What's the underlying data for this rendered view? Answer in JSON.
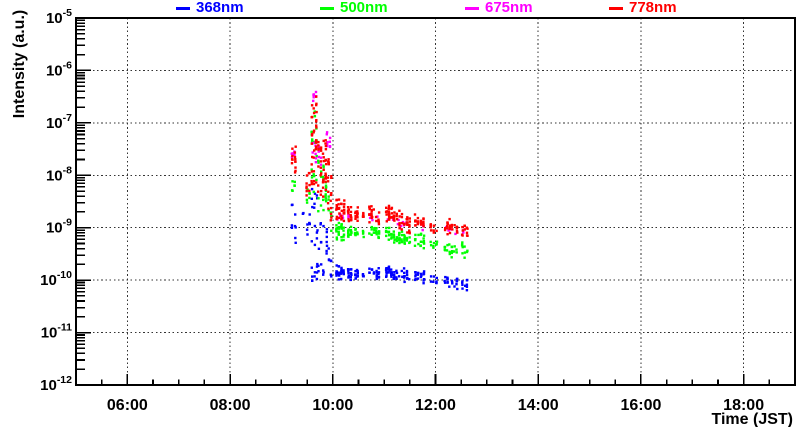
{
  "chart_data": {
    "type": "scatter",
    "title": "",
    "xlabel": "Time (JST)",
    "ylabel": "Intensity (a.u.)",
    "x_axis": {
      "unit": "hour_of_day",
      "min": 5,
      "max": 19,
      "major_ticks": [
        {
          "hour": 6,
          "label": "06:00"
        },
        {
          "hour": 8,
          "label": "08:00"
        },
        {
          "hour": 10,
          "label": "10:00"
        },
        {
          "hour": 12,
          "label": "12:00"
        },
        {
          "hour": 14,
          "label": "14:00"
        },
        {
          "hour": 16,
          "label": "16:00"
        },
        {
          "hour": 18,
          "label": "18:00"
        }
      ],
      "minor_step_hours": 0.5,
      "grid": "dotted"
    },
    "y_axis": {
      "scale": "log10",
      "tick_base": "10",
      "max_exponent": -5,
      "min_exponent": -12,
      "tick_exponents": [
        -5,
        -6,
        -7,
        -8,
        -9,
        -10,
        -11,
        -12
      ],
      "grid": "dotted"
    },
    "legend": [
      {
        "label": "368nm",
        "color": "#0000ff"
      },
      {
        "label": "500nm",
        "color": "#00ff00"
      },
      {
        "label": "675nm",
        "color": "#ff00ff"
      },
      {
        "label": "778nm",
        "color": "#ff0000"
      }
    ],
    "cluster_format": [
      "t_start_hour",
      "t_end_hour",
      "n_points",
      "log10_center_start",
      "log10_center_end",
      "log10_half_spread"
    ],
    "series": [
      {
        "name": "368nm",
        "color": "#0000ff",
        "clusters": [
          [
            9.18,
            9.3,
            9,
            -8.9,
            -9.1,
            0.45
          ],
          [
            9.4,
            9.44,
            2,
            -8.7,
            -8.7,
            0.1
          ],
          [
            9.48,
            9.57,
            7,
            -9.0,
            -8.9,
            0.4
          ],
          [
            9.57,
            9.72,
            14,
            -8.8,
            -8.85,
            0.6
          ],
          [
            9.57,
            9.72,
            10,
            -9.8,
            -9.8,
            0.4
          ],
          [
            9.7,
            9.84,
            12,
            -9.4,
            -9.45,
            0.6
          ],
          [
            9.86,
            9.99,
            14,
            -9.4,
            -9.7,
            0.45
          ],
          [
            10.05,
            10.24,
            26,
            -9.85,
            -9.87,
            0.17
          ],
          [
            10.28,
            10.38,
            14,
            -9.87,
            -9.88,
            0.14
          ],
          [
            10.42,
            10.5,
            12,
            -9.88,
            -9.88,
            0.13
          ],
          [
            10.57,
            10.62,
            4,
            -9.9,
            -9.9,
            0.1
          ],
          [
            10.69,
            10.92,
            20,
            -9.82,
            -9.88,
            0.15
          ],
          [
            11.02,
            11.52,
            52,
            -9.8,
            -9.95,
            0.15
          ],
          [
            11.58,
            11.8,
            20,
            -9.9,
            -9.95,
            0.13
          ],
          [
            11.88,
            12.05,
            8,
            -10.0,
            -10.0,
            0.1
          ],
          [
            12.16,
            12.44,
            20,
            -10.02,
            -10.08,
            0.14
          ],
          [
            12.5,
            12.64,
            10,
            -10.08,
            -10.1,
            0.12
          ]
        ]
      },
      {
        "name": "500nm",
        "color": "#00ff00",
        "clusters": [
          [
            9.19,
            9.28,
            6,
            -8.22,
            -8.25,
            0.15
          ],
          [
            9.48,
            9.57,
            6,
            -8.5,
            -8.45,
            0.3
          ],
          [
            9.62,
            9.67,
            3,
            -6.8,
            -6.8,
            0.1
          ],
          [
            9.57,
            9.7,
            17,
            -7.8,
            -7.8,
            0.7
          ],
          [
            9.7,
            9.84,
            13,
            -8.2,
            -8.3,
            0.5
          ],
          [
            9.84,
            9.99,
            15,
            -8.35,
            -8.85,
            0.4
          ],
          [
            10.05,
            10.24,
            26,
            -9.05,
            -9.08,
            0.18
          ],
          [
            10.28,
            10.38,
            14,
            -9.08,
            -9.1,
            0.15
          ],
          [
            10.42,
            10.5,
            12,
            -9.1,
            -9.1,
            0.13
          ],
          [
            10.57,
            10.62,
            4,
            -9.12,
            -9.12,
            0.1
          ],
          [
            10.69,
            10.92,
            20,
            -9.05,
            -9.1,
            0.15
          ],
          [
            11.02,
            11.52,
            52,
            -9.1,
            -9.28,
            0.16
          ],
          [
            11.58,
            11.8,
            20,
            -9.22,
            -9.28,
            0.15
          ],
          [
            11.88,
            12.05,
            8,
            -9.3,
            -9.32,
            0.12
          ],
          [
            12.16,
            12.44,
            20,
            -9.35,
            -9.42,
            0.2
          ],
          [
            12.5,
            12.64,
            10,
            -9.42,
            -9.45,
            0.16
          ]
        ]
      },
      {
        "name": "675nm",
        "color": "#ff00ff",
        "clusters": [
          [
            9.19,
            9.27,
            7,
            -7.5,
            -7.55,
            0.17
          ],
          [
            9.6,
            9.7,
            7,
            -6.45,
            -6.5,
            0.13
          ],
          [
            9.58,
            9.7,
            8,
            -7.5,
            -7.5,
            0.35
          ],
          [
            9.7,
            9.84,
            6,
            -7.6,
            -7.7,
            0.3
          ],
          [
            9.86,
            9.98,
            9,
            -7.25,
            -7.4,
            0.25
          ],
          [
            10.06,
            10.22,
            6,
            -8.75,
            -8.78,
            0.1
          ],
          [
            10.29,
            10.37,
            3,
            -8.78,
            -8.8,
            0.08
          ],
          [
            10.7,
            10.9,
            4,
            -8.8,
            -8.82,
            0.08
          ],
          [
            11.05,
            11.5,
            8,
            -8.82,
            -9.0,
            0.08
          ],
          [
            11.6,
            11.78,
            4,
            -8.95,
            -8.98,
            0.08
          ],
          [
            12.18,
            12.42,
            5,
            -9.0,
            -9.05,
            0.1
          ],
          [
            12.52,
            12.62,
            3,
            -9.05,
            -9.05,
            0.08
          ]
        ]
      },
      {
        "name": "778nm",
        "color": "#ff0000",
        "clusters": [
          [
            9.18,
            9.3,
            14,
            -7.7,
            -7.75,
            0.33
          ],
          [
            9.47,
            9.57,
            10,
            -8.1,
            -8.0,
            0.4
          ],
          [
            9.57,
            9.7,
            38,
            -7.35,
            -7.35,
            0.85
          ],
          [
            9.7,
            9.84,
            26,
            -7.75,
            -7.9,
            0.6
          ],
          [
            9.84,
            9.99,
            32,
            -7.8,
            -8.45,
            0.6
          ],
          [
            10.05,
            10.24,
            30,
            -8.65,
            -8.7,
            0.27
          ],
          [
            10.28,
            10.38,
            16,
            -8.7,
            -8.75,
            0.2
          ],
          [
            10.42,
            10.5,
            14,
            -8.78,
            -8.78,
            0.18
          ],
          [
            10.57,
            10.62,
            5,
            -8.8,
            -8.8,
            0.12
          ],
          [
            10.69,
            10.92,
            22,
            -8.72,
            -8.78,
            0.2
          ],
          [
            11.02,
            11.52,
            60,
            -8.7,
            -8.95,
            0.2
          ],
          [
            11.58,
            11.8,
            24,
            -8.85,
            -8.92,
            0.18
          ],
          [
            11.88,
            12.05,
            9,
            -9.0,
            -9.0,
            0.12
          ],
          [
            12.16,
            12.44,
            24,
            -8.98,
            -9.02,
            0.18
          ],
          [
            12.5,
            12.64,
            12,
            -9.02,
            -9.05,
            0.15
          ]
        ]
      }
    ]
  }
}
